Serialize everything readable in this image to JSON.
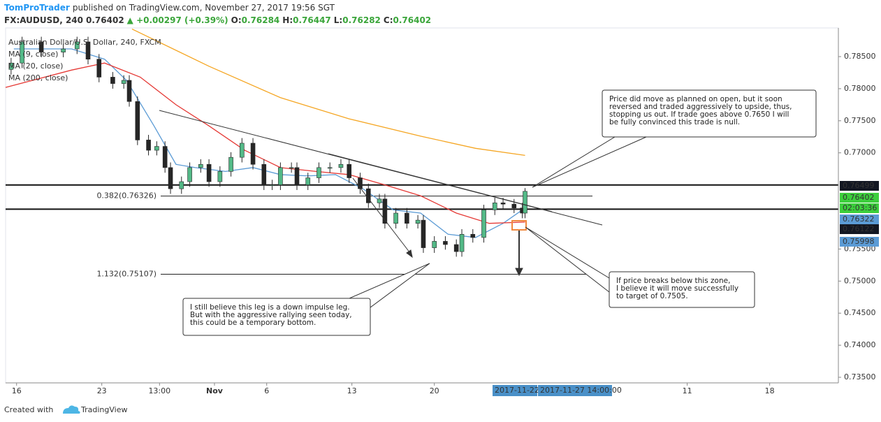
{
  "header": {
    "author": "TomProTrader",
    "published": "published on TradingView.com, November 27, 2017 19:56 SGT"
  },
  "chart_data": {
    "type": "candlestick",
    "symbol": "FX:AUDUSD, 240",
    "last": "0.76402",
    "change": "▲ +0.00297 (+0.39%)",
    "ohlc_labels": [
      {
        "label": "O:",
        "value": "0.76284"
      },
      {
        "label": "H:",
        "value": "0.76447"
      },
      {
        "label": "L:",
        "value": "0.76282"
      },
      {
        "label": "C:",
        "value": "0.76402"
      }
    ],
    "legend_title": "Australian Dollar/U.S. Dollar, 240, FXCM",
    "x": [
      -2,
      2,
      9,
      17,
      22,
      26,
      30,
      35,
      39,
      41,
      44,
      48,
      51,
      54,
      56,
      60,
      63,
      67,
      70,
      74,
      78,
      82,
      86,
      90,
      93,
      96,
      100,
      102,
      106,
      110,
      114,
      118,
      121,
      125,
      128,
      132,
      134,
      138,
      142,
      146,
      148,
      152,
      156,
      160,
      162,
      166,
      170,
      174,
      177,
      181,
      184,
      185
    ],
    "open": [
      0.783,
      0.784,
      0.7873,
      0.7857,
      0.7862,
      0.7873,
      0.7846,
      0.7818,
      0.7808,
      0.7813,
      0.778,
      0.772,
      0.7704,
      0.771,
      0.7677,
      0.7644,
      0.7655,
      0.7677,
      0.7682,
      0.7655,
      0.7671,
      0.7693,
      0.7715,
      0.7682,
      0.765,
      0.765,
      0.7677,
      0.7677,
      0.765,
      0.7661,
      0.7677,
      0.7677,
      0.7682,
      0.7661,
      0.7644,
      0.7622,
      0.7628,
      0.759,
      0.7606,
      0.759,
      0.7595,
      0.7552,
      0.7562,
      0.7557,
      0.7546,
      0.7573,
      0.7568,
      0.7611,
      0.7622,
      0.762,
      0.7614,
      0.7606
    ],
    "high": [
      0.7848,
      0.7881,
      0.7881,
      0.787,
      0.7881,
      0.7881,
      0.7854,
      0.7826,
      0.7821,
      0.7821,
      0.7788,
      0.7728,
      0.7718,
      0.7718,
      0.7685,
      0.7663,
      0.7685,
      0.769,
      0.769,
      0.7679,
      0.7701,
      0.7723,
      0.7723,
      0.769,
      0.7658,
      0.7685,
      0.7685,
      0.7685,
      0.7669,
      0.7685,
      0.7685,
      0.769,
      0.769,
      0.7669,
      0.7652,
      0.7636,
      0.7636,
      0.7614,
      0.7614,
      0.7603,
      0.7603,
      0.757,
      0.757,
      0.7565,
      0.7581,
      0.7581,
      0.7619,
      0.763,
      0.763,
      0.7628,
      0.7622,
      0.7645
    ],
    "low": [
      0.7822,
      0.7832,
      0.7849,
      0.7849,
      0.7854,
      0.7838,
      0.781,
      0.78,
      0.78,
      0.7772,
      0.7712,
      0.7696,
      0.7696,
      0.7669,
      0.7636,
      0.7636,
      0.7647,
      0.7669,
      0.7647,
      0.7647,
      0.7663,
      0.7685,
      0.7674,
      0.7642,
      0.7642,
      0.7642,
      0.7669,
      0.7642,
      0.7642,
      0.7653,
      0.7669,
      0.7669,
      0.7653,
      0.7636,
      0.7614,
      0.7614,
      0.7582,
      0.7582,
      0.7582,
      0.7582,
      0.7544,
      0.7544,
      0.7549,
      0.7538,
      0.7538,
      0.756,
      0.756,
      0.7603,
      0.7612,
      0.7606,
      0.7598,
      0.7598
    ],
    "close": [
      0.784,
      0.7873,
      0.7857,
      0.7862,
      0.7873,
      0.7846,
      0.7818,
      0.7808,
      0.7813,
      0.778,
      0.772,
      0.7704,
      0.771,
      0.7677,
      0.7644,
      0.7655,
      0.7677,
      0.7682,
      0.7655,
      0.7671,
      0.7693,
      0.7715,
      0.7682,
      0.765,
      0.765,
      0.7677,
      0.7677,
      0.765,
      0.7661,
      0.7677,
      0.7677,
      0.7682,
      0.7661,
      0.7644,
      0.7622,
      0.7628,
      0.759,
      0.7606,
      0.759,
      0.7595,
      0.7552,
      0.7562,
      0.7557,
      0.7546,
      0.7573,
      0.7568,
      0.7611,
      0.7622,
      0.762,
      0.7614,
      0.7606,
      0.764
    ],
    "up_color": "#53b987",
    "down_color": "#262626",
    "series": [
      {
        "name": "MA (9, close)",
        "color": "#5b9bd5",
        "x": [
          -1,
          20,
          32,
          40,
          50,
          58,
          65,
          76,
          86,
          96,
          106,
          116,
          126,
          137,
          147,
          157,
          167,
          177,
          185
        ],
        "values": [
          0.7862,
          0.7862,
          0.7846,
          0.7813,
          0.7742,
          0.7682,
          0.7677,
          0.7671,
          0.7677,
          0.7666,
          0.7664,
          0.7666,
          0.7644,
          0.7611,
          0.7606,
          0.7573,
          0.7568,
          0.759,
          0.7614
        ]
      },
      {
        "name": "MA (20, close)",
        "color": "#e53935",
        "x": [
          -4,
          20,
          32,
          45,
          58,
          70,
          83,
          96,
          109,
          121,
          134,
          147,
          160,
          172,
          185
        ],
        "values": [
          0.7802,
          0.7829,
          0.784,
          0.7818,
          0.7775,
          0.7742,
          0.7704,
          0.7677,
          0.7671,
          0.7666,
          0.765,
          0.7633,
          0.7606,
          0.759,
          0.7592
        ]
      },
      {
        "name": "MA (200, close)",
        "color": "#f5a623",
        "x": [
          42,
          70,
          96,
          121,
          147,
          167,
          185
        ],
        "values": [
          0.7893,
          0.7835,
          0.7786,
          0.7753,
          0.7726,
          0.7707,
          0.7696
        ]
      }
    ],
    "xlim": [
      -4,
      299
    ],
    "ylim": [
      0.73413,
      0.78947
    ],
    "xticks": [
      {
        "value": 0,
        "label": "16"
      },
      {
        "value": 31,
        "label": "23"
      },
      {
        "value": 52,
        "label": "13:00"
      },
      {
        "value": 72,
        "label": "Nov"
      },
      {
        "value": 91,
        "label": "6"
      },
      {
        "value": 122,
        "label": "13"
      },
      {
        "value": 152,
        "label": "20"
      },
      {
        "value": 244,
        "label": "11"
      },
      {
        "value": 274,
        "label": "18"
      }
    ],
    "yticks": [
      {
        "value": 0.735,
        "label": "0.73500"
      },
      {
        "value": 0.74,
        "label": "0.74000"
      },
      {
        "value": 0.745,
        "label": "0.74500"
      },
      {
        "value": 0.75,
        "label": "0.75000"
      },
      {
        "value": 0.755,
        "label": "0.75500"
      },
      {
        "value": 0.77,
        "label": "0.77000"
      },
      {
        "value": 0.775,
        "label": "0.77500"
      },
      {
        "value": 0.78,
        "label": "0.78000"
      },
      {
        "value": 0.785,
        "label": "0.78500"
      }
    ],
    "levels": [
      0.76499,
      0.76122
    ],
    "fib_levels": [
      {
        "value": 0.76326,
        "label": "0.382(0.76326)"
      },
      {
        "value": 0.75107,
        "label": "1.132(0.75107)"
      }
    ],
    "price_labels": [
      {
        "value": 0.76499,
        "color": "#131722"
      },
      {
        "value": 0.76402,
        "color": "#3ccf3c"
      },
      {
        "label": "02:03:36",
        "color": "#3ccf3c"
      },
      {
        "value": 0.76322,
        "color": "#5b9bd5"
      },
      {
        "value": 0.76122,
        "color": "#131722"
      },
      {
        "value": 0.75998,
        "color": "#5b9bd5"
      }
    ],
    "crosshair_labels": [
      "2017-11-22 2",
      "2017-11-27 14:00:00"
    ],
    "annotations": [
      {
        "lines": [
          "Price did move as planned on open, but it soon",
          "reversed and traded aggressively to upside, thus,",
          "stopping us out. If trade goes above 0.7650 I will",
          "be fully convinced this trade is null."
        ]
      },
      {
        "lines": [
          "If price breaks below this zone,",
          "I believe it will move successfully",
          "to target of 0.7505."
        ]
      },
      {
        "lines": [
          "I still believe this leg is a down impulse leg.",
          "But with the aggressive rallying seen today,",
          "this could be a temporary bottom."
        ]
      }
    ]
  },
  "footer": {
    "created": "Created with",
    "brand": "TradingView"
  }
}
